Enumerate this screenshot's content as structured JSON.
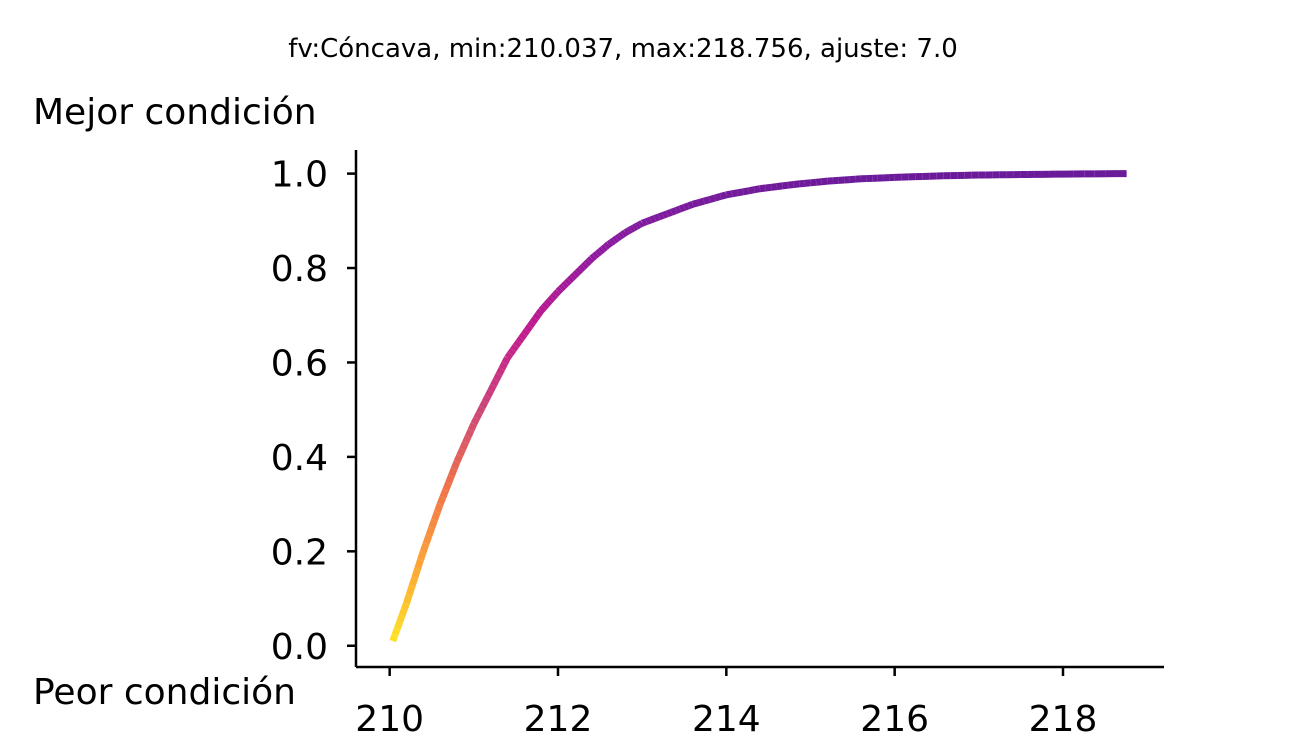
{
  "chart_data": {
    "type": "line",
    "title": "fv:Cóncava, min:210.037, max:218.756, ajuste: 7.0",
    "ylabel_top": "Mejor condición",
    "ylabel_bottom": "Peor condición",
    "xlim": [
      209.6,
      219.2
    ],
    "ylim": [
      -0.045,
      1.05
    ],
    "xticks": [
      210,
      212,
      214,
      216,
      218
    ],
    "xtick_labels": [
      "210",
      "212",
      "214",
      "216",
      "218"
    ],
    "yticks": [
      0.0,
      0.2,
      0.4,
      0.6,
      0.8,
      1.0
    ],
    "ytick_labels": [
      "0.0",
      "0.2",
      "0.4",
      "0.6",
      "0.8",
      "1.0"
    ],
    "colormap": "plasma_r",
    "colormap_stops": [
      "#fde725",
      "#fca636",
      "#f0734a",
      "#cc4778",
      "#c21b8e",
      "#8e1aa0",
      "#6a1b9a"
    ],
    "grid": false,
    "series": [
      {
        "x": [
          210.037,
          210.2,
          210.4,
          210.6,
          210.8,
          211.0,
          211.2,
          211.4,
          211.6,
          211.8,
          212.0,
          212.2,
          212.4,
          212.6,
          212.8,
          213.0,
          213.3,
          213.6,
          214.0,
          214.4,
          214.8,
          215.2,
          215.6,
          216.0,
          216.5,
          217.0,
          217.5,
          218.0,
          218.756
        ],
        "y": [
          0.01,
          0.09,
          0.2,
          0.3,
          0.39,
          0.47,
          0.54,
          0.61,
          0.66,
          0.71,
          0.75,
          0.785,
          0.82,
          0.85,
          0.875,
          0.895,
          0.915,
          0.935,
          0.955,
          0.968,
          0.977,
          0.984,
          0.989,
          0.992,
          0.995,
          0.997,
          0.998,
          0.999,
          1.0
        ]
      }
    ]
  }
}
